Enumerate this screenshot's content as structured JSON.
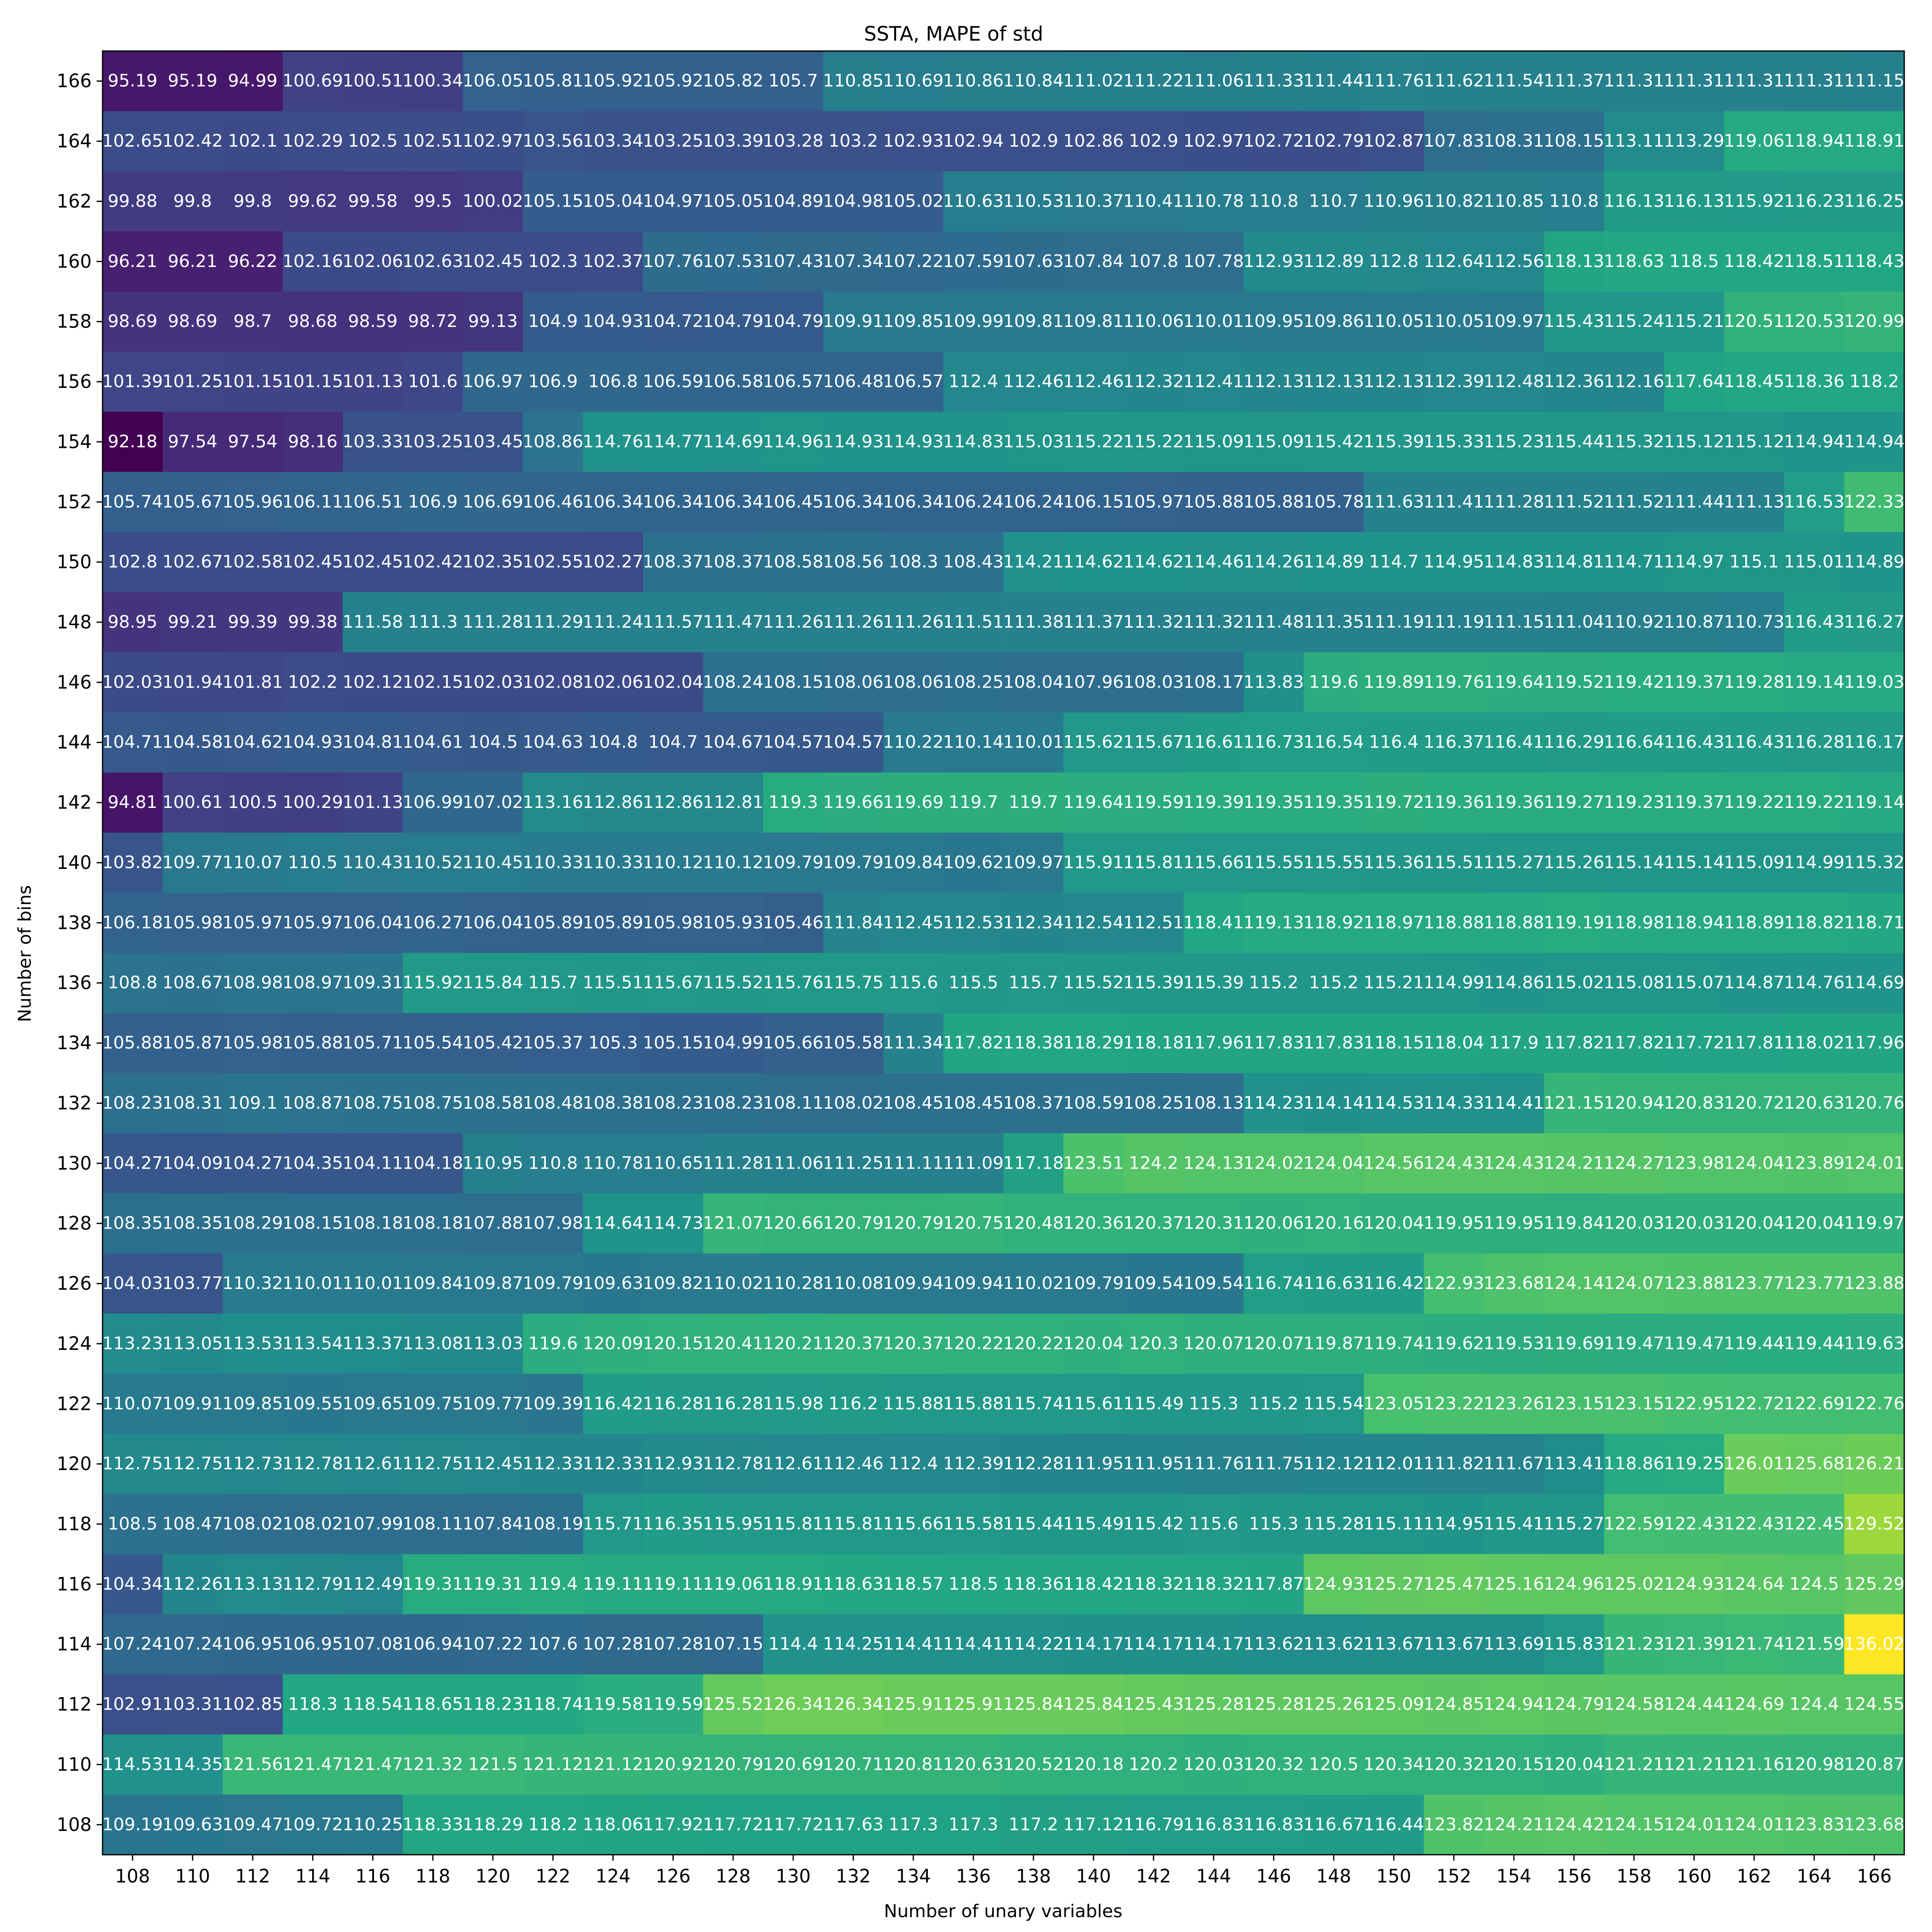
{
  "chart_data": {
    "type": "heatmap",
    "title": "SSTA, MAPE of std",
    "xlabel": "Number of unary variables",
    "ylabel": "Number of bins",
    "x_ticks": [
      "108",
      "110",
      "112",
      "114",
      "116",
      "118",
      "120",
      "122",
      "124",
      "126",
      "128",
      "130",
      "132",
      "134",
      "136",
      "138",
      "140",
      "142",
      "144",
      "146",
      "148",
      "150",
      "152",
      "154",
      "156",
      "158",
      "160",
      "162",
      "164",
      "166"
    ],
    "y_ticks": [
      "166",
      "164",
      "162",
      "160",
      "158",
      "156",
      "154",
      "152",
      "150",
      "148",
      "146",
      "144",
      "142",
      "140",
      "138",
      "136",
      "134",
      "132",
      "130",
      "128",
      "126",
      "124",
      "122",
      "120",
      "118",
      "116",
      "114",
      "112",
      "110",
      "108"
    ],
    "color_range": [
      92.18,
      136.02
    ],
    "colormap": "viridis",
    "values": [
      [
        "95.19",
        "95.19",
        "94.99",
        "100.69",
        "100.51",
        "100.34",
        "106.05",
        "105.81",
        "105.92",
        "105.92",
        "105.82",
        "105.7",
        "110.85",
        "110.69",
        "110.86",
        "110.84",
        "111.02",
        "111.22",
        "111.06",
        "111.33",
        "111.44",
        "111.76",
        "111.62",
        "111.54",
        "111.37",
        "111.31",
        "111.31",
        "111.31",
        "111.31",
        "111.15"
      ],
      [
        "102.65",
        "102.42",
        "102.1",
        "102.29",
        "102.5",
        "102.51",
        "102.97",
        "103.56",
        "103.34",
        "103.25",
        "103.39",
        "103.28",
        "103.2",
        "102.93",
        "102.94",
        "102.9",
        "102.86",
        "102.9",
        "102.97",
        "102.72",
        "102.79",
        "102.87",
        "107.83",
        "108.31",
        "108.15",
        "113.11",
        "113.29",
        "119.06",
        "118.94",
        "118.91"
      ],
      [
        "99.88",
        "99.8",
        "99.8",
        "99.62",
        "99.58",
        "99.5",
        "100.02",
        "105.15",
        "105.04",
        "104.97",
        "105.05",
        "104.89",
        "104.98",
        "105.02",
        "110.63",
        "110.53",
        "110.37",
        "110.41",
        "110.78",
        "110.8",
        "110.7",
        "110.96",
        "110.82",
        "110.85",
        "110.8",
        "116.13",
        "116.13",
        "115.92",
        "116.23",
        "116.25"
      ],
      [
        "96.21",
        "96.21",
        "96.22",
        "102.16",
        "102.06",
        "102.63",
        "102.45",
        "102.3",
        "102.37",
        "107.76",
        "107.53",
        "107.43",
        "107.34",
        "107.22",
        "107.59",
        "107.63",
        "107.84",
        "107.8",
        "107.78",
        "112.93",
        "112.89",
        "112.8",
        "112.64",
        "112.56",
        "118.13",
        "118.63",
        "118.5",
        "118.42",
        "118.51",
        "118.43"
      ],
      [
        "98.69",
        "98.69",
        "98.7",
        "98.68",
        "98.59",
        "98.72",
        "99.13",
        "104.9",
        "104.93",
        "104.72",
        "104.79",
        "104.79",
        "109.91",
        "109.85",
        "109.99",
        "109.81",
        "109.81",
        "110.06",
        "110.01",
        "109.95",
        "109.86",
        "110.05",
        "110.05",
        "109.97",
        "115.43",
        "115.24",
        "115.21",
        "120.51",
        "120.53",
        "120.99"
      ],
      [
        "101.39",
        "101.25",
        "101.15",
        "101.15",
        "101.13",
        "101.6",
        "106.97",
        "106.9",
        "106.8",
        "106.59",
        "106.58",
        "106.57",
        "106.48",
        "106.57",
        "112.4",
        "112.46",
        "112.46",
        "112.32",
        "112.41",
        "112.13",
        "112.13",
        "112.13",
        "112.39",
        "112.48",
        "112.36",
        "112.16",
        "117.64",
        "118.45",
        "118.36",
        "118.2"
      ],
      [
        "92.18",
        "97.54",
        "97.54",
        "98.16",
        "103.33",
        "103.25",
        "103.45",
        "108.86",
        "114.76",
        "114.77",
        "114.69",
        "114.96",
        "114.93",
        "114.93",
        "114.83",
        "115.03",
        "115.22",
        "115.22",
        "115.09",
        "115.09",
        "115.42",
        "115.39",
        "115.33",
        "115.23",
        "115.44",
        "115.32",
        "115.12",
        "115.12",
        "114.94",
        "114.94"
      ],
      [
        "105.74",
        "105.67",
        "105.96",
        "106.11",
        "106.51",
        "106.9",
        "106.69",
        "106.46",
        "106.34",
        "106.34",
        "106.34",
        "106.45",
        "106.34",
        "106.34",
        "106.24",
        "106.24",
        "106.15",
        "105.97",
        "105.88",
        "105.88",
        "105.78",
        "111.63",
        "111.41",
        "111.28",
        "111.52",
        "111.52",
        "111.44",
        "111.13",
        "116.53",
        "122.33"
      ],
      [
        "102.8",
        "102.67",
        "102.58",
        "102.45",
        "102.45",
        "102.42",
        "102.35",
        "102.55",
        "102.27",
        "108.37",
        "108.37",
        "108.58",
        "108.56",
        "108.3",
        "108.43",
        "114.21",
        "114.62",
        "114.62",
        "114.46",
        "114.26",
        "114.89",
        "114.7",
        "114.95",
        "114.83",
        "114.81",
        "114.71",
        "114.97",
        "115.1",
        "115.01",
        "114.89"
      ],
      [
        "98.95",
        "99.21",
        "99.39",
        "99.38",
        "111.58",
        "111.3",
        "111.28",
        "111.29",
        "111.24",
        "111.57",
        "111.47",
        "111.26",
        "111.26",
        "111.26",
        "111.51",
        "111.38",
        "111.37",
        "111.32",
        "111.32",
        "111.48",
        "111.35",
        "111.19",
        "111.19",
        "111.15",
        "111.04",
        "110.92",
        "110.87",
        "110.73",
        "116.43",
        "116.27"
      ],
      [
        "102.03",
        "101.94",
        "101.81",
        "102.2",
        "102.12",
        "102.15",
        "102.03",
        "102.08",
        "102.06",
        "102.04",
        "108.24",
        "108.15",
        "108.06",
        "108.06",
        "108.25",
        "108.04",
        "107.96",
        "108.03",
        "108.17",
        "113.83",
        "119.6",
        "119.89",
        "119.76",
        "119.64",
        "119.52",
        "119.42",
        "119.37",
        "119.28",
        "119.14",
        "119.03"
      ],
      [
        "104.71",
        "104.58",
        "104.62",
        "104.93",
        "104.81",
        "104.61",
        "104.5",
        "104.63",
        "104.8",
        "104.7",
        "104.67",
        "104.57",
        "104.57",
        "110.22",
        "110.14",
        "110.01",
        "115.62",
        "115.67",
        "116.61",
        "116.73",
        "116.54",
        "116.4",
        "116.37",
        "116.41",
        "116.29",
        "116.64",
        "116.43",
        "116.43",
        "116.28",
        "116.17"
      ],
      [
        "94.81",
        "100.61",
        "100.5",
        "100.29",
        "101.13",
        "106.99",
        "107.02",
        "113.16",
        "112.86",
        "112.86",
        "112.81",
        "119.3",
        "119.66",
        "119.69",
        "119.7",
        "119.7",
        "119.64",
        "119.59",
        "119.39",
        "119.35",
        "119.35",
        "119.72",
        "119.36",
        "119.36",
        "119.27",
        "119.23",
        "119.37",
        "119.22",
        "119.22",
        "119.14"
      ],
      [
        "103.82",
        "109.77",
        "110.07",
        "110.5",
        "110.43",
        "110.52",
        "110.45",
        "110.33",
        "110.33",
        "110.12",
        "110.12",
        "109.79",
        "109.79",
        "109.84",
        "109.62",
        "109.97",
        "115.91",
        "115.81",
        "115.66",
        "115.55",
        "115.55",
        "115.36",
        "115.51",
        "115.27",
        "115.26",
        "115.14",
        "115.14",
        "115.09",
        "114.99",
        "115.32"
      ],
      [
        "106.18",
        "105.98",
        "105.97",
        "105.97",
        "106.04",
        "106.27",
        "106.04",
        "105.89",
        "105.89",
        "105.98",
        "105.93",
        "105.46",
        "111.84",
        "112.45",
        "112.53",
        "112.34",
        "112.54",
        "112.51",
        "118.41",
        "119.13",
        "118.92",
        "118.97",
        "118.88",
        "118.88",
        "119.19",
        "118.98",
        "118.94",
        "118.89",
        "118.82",
        "118.71"
      ],
      [
        "108.8",
        "108.67",
        "108.98",
        "108.97",
        "109.31",
        "115.92",
        "115.84",
        "115.7",
        "115.51",
        "115.67",
        "115.52",
        "115.76",
        "115.75",
        "115.6",
        "115.5",
        "115.7",
        "115.52",
        "115.39",
        "115.39",
        "115.2",
        "115.2",
        "115.21",
        "114.99",
        "114.86",
        "115.02",
        "115.08",
        "115.07",
        "114.87",
        "114.76",
        "114.69"
      ],
      [
        "105.88",
        "105.87",
        "105.98",
        "105.88",
        "105.71",
        "105.54",
        "105.42",
        "105.37",
        "105.3",
        "105.15",
        "104.99",
        "105.66",
        "105.58",
        "111.34",
        "117.82",
        "118.38",
        "118.29",
        "118.18",
        "117.96",
        "117.83",
        "117.83",
        "118.15",
        "118.04",
        "117.9",
        "117.82",
        "117.82",
        "117.72",
        "117.81",
        "118.02",
        "117.96"
      ],
      [
        "108.23",
        "108.31",
        "109.1",
        "108.87",
        "108.75",
        "108.75",
        "108.58",
        "108.48",
        "108.38",
        "108.23",
        "108.23",
        "108.11",
        "108.02",
        "108.45",
        "108.45",
        "108.37",
        "108.59",
        "108.25",
        "108.13",
        "114.23",
        "114.14",
        "114.53",
        "114.33",
        "114.41",
        "121.15",
        "120.94",
        "120.83",
        "120.72",
        "120.63",
        "120.76"
      ],
      [
        "104.27",
        "104.09",
        "104.27",
        "104.35",
        "104.11",
        "104.18",
        "110.95",
        "110.8",
        "110.78",
        "110.65",
        "111.28",
        "111.06",
        "111.25",
        "111.11",
        "111.09",
        "117.18",
        "123.51",
        "124.2",
        "124.13",
        "124.02",
        "124.04",
        "124.56",
        "124.43",
        "124.43",
        "124.21",
        "124.27",
        "123.98",
        "124.04",
        "123.89",
        "124.01"
      ],
      [
        "108.35",
        "108.35",
        "108.29",
        "108.15",
        "108.18",
        "108.18",
        "107.88",
        "107.98",
        "114.64",
        "114.73",
        "121.07",
        "120.66",
        "120.79",
        "120.79",
        "120.75",
        "120.48",
        "120.36",
        "120.37",
        "120.31",
        "120.06",
        "120.16",
        "120.04",
        "119.95",
        "119.95",
        "119.84",
        "120.03",
        "120.03",
        "120.04",
        "120.04",
        "119.97"
      ],
      [
        "104.03",
        "103.77",
        "110.32",
        "110.01",
        "110.01",
        "109.84",
        "109.87",
        "109.79",
        "109.63",
        "109.82",
        "110.02",
        "110.28",
        "110.08",
        "109.94",
        "109.94",
        "110.02",
        "109.79",
        "109.54",
        "109.54",
        "116.74",
        "116.63",
        "116.42",
        "122.93",
        "123.68",
        "124.14",
        "124.07",
        "123.88",
        "123.77",
        "123.77",
        "123.88"
      ],
      [
        "113.23",
        "113.05",
        "113.53",
        "113.54",
        "113.37",
        "113.08",
        "113.03",
        "119.6",
        "120.09",
        "120.15",
        "120.41",
        "120.21",
        "120.37",
        "120.37",
        "120.22",
        "120.22",
        "120.04",
        "120.3",
        "120.07",
        "120.07",
        "119.87",
        "119.74",
        "119.62",
        "119.53",
        "119.69",
        "119.47",
        "119.47",
        "119.44",
        "119.44",
        "119.63"
      ],
      [
        "110.07",
        "109.91",
        "109.85",
        "109.55",
        "109.65",
        "109.75",
        "109.77",
        "109.39",
        "116.42",
        "116.28",
        "116.28",
        "115.98",
        "116.2",
        "115.88",
        "115.88",
        "115.74",
        "115.61",
        "115.49",
        "115.3",
        "115.2",
        "115.54",
        "123.05",
        "123.22",
        "123.26",
        "123.15",
        "123.15",
        "122.95",
        "122.72",
        "122.69",
        "122.76"
      ],
      [
        "112.75",
        "112.75",
        "112.73",
        "112.78",
        "112.61",
        "112.75",
        "112.45",
        "112.33",
        "112.33",
        "112.93",
        "112.78",
        "112.61",
        "112.46",
        "112.4",
        "112.39",
        "112.28",
        "111.95",
        "111.95",
        "111.76",
        "111.75",
        "112.12",
        "112.01",
        "111.82",
        "111.67",
        "113.41",
        "118.86",
        "119.25",
        "126.01",
        "125.68",
        "126.21"
      ],
      [
        "108.5",
        "108.47",
        "108.02",
        "108.02",
        "107.99",
        "108.11",
        "107.84",
        "108.19",
        "115.71",
        "116.35",
        "115.95",
        "115.81",
        "115.81",
        "115.66",
        "115.58",
        "115.44",
        "115.49",
        "115.42",
        "115.6",
        "115.3",
        "115.28",
        "115.11",
        "114.95",
        "115.41",
        "115.27",
        "122.59",
        "122.43",
        "122.43",
        "122.45",
        "129.52"
      ],
      [
        "104.34",
        "112.26",
        "113.13",
        "112.79",
        "112.49",
        "119.31",
        "119.31",
        "119.4",
        "119.11",
        "119.11",
        "119.06",
        "118.91",
        "118.63",
        "118.57",
        "118.5",
        "118.36",
        "118.42",
        "118.32",
        "118.32",
        "117.87",
        "124.93",
        "125.27",
        "125.47",
        "125.16",
        "124.96",
        "125.02",
        "124.93",
        "124.64",
        "124.5",
        "125.29"
      ],
      [
        "107.24",
        "107.24",
        "106.95",
        "106.95",
        "107.08",
        "106.94",
        "107.22",
        "107.6",
        "107.28",
        "107.28",
        "107.15",
        "114.4",
        "114.25",
        "114.41",
        "114.41",
        "114.22",
        "114.17",
        "114.17",
        "114.17",
        "113.62",
        "113.62",
        "113.67",
        "113.67",
        "113.69",
        "115.83",
        "121.23",
        "121.39",
        "121.74",
        "121.59",
        "136.02"
      ],
      [
        "102.91",
        "103.31",
        "102.85",
        "118.3",
        "118.54",
        "118.65",
        "118.23",
        "118.74",
        "119.58",
        "119.59",
        "125.52",
        "126.34",
        "126.34",
        "125.91",
        "125.91",
        "125.84",
        "125.84",
        "125.43",
        "125.28",
        "125.28",
        "125.26",
        "125.09",
        "124.85",
        "124.94",
        "124.79",
        "124.58",
        "124.44",
        "124.69",
        "124.4",
        "124.55"
      ],
      [
        "114.53",
        "114.35",
        "121.56",
        "121.47",
        "121.47",
        "121.32",
        "121.5",
        "121.12",
        "121.12",
        "120.92",
        "120.79",
        "120.69",
        "120.71",
        "120.81",
        "120.63",
        "120.52",
        "120.18",
        "120.2",
        "120.03",
        "120.32",
        "120.5",
        "120.34",
        "120.32",
        "120.15",
        "120.04",
        "121.21",
        "121.21",
        "121.16",
        "120.98",
        "120.87"
      ],
      [
        "109.19",
        "109.63",
        "109.47",
        "109.72",
        "110.25",
        "118.33",
        "118.29",
        "118.2",
        "118.06",
        "117.92",
        "117.72",
        "117.72",
        "117.63",
        "117.3",
        "117.3",
        "117.2",
        "117.12",
        "116.79",
        "116.83",
        "116.83",
        "116.67",
        "116.44",
        "123.82",
        "124.21",
        "124.42",
        "124.15",
        "124.01",
        "124.01",
        "123.83",
        "123.68"
      ]
    ]
  }
}
